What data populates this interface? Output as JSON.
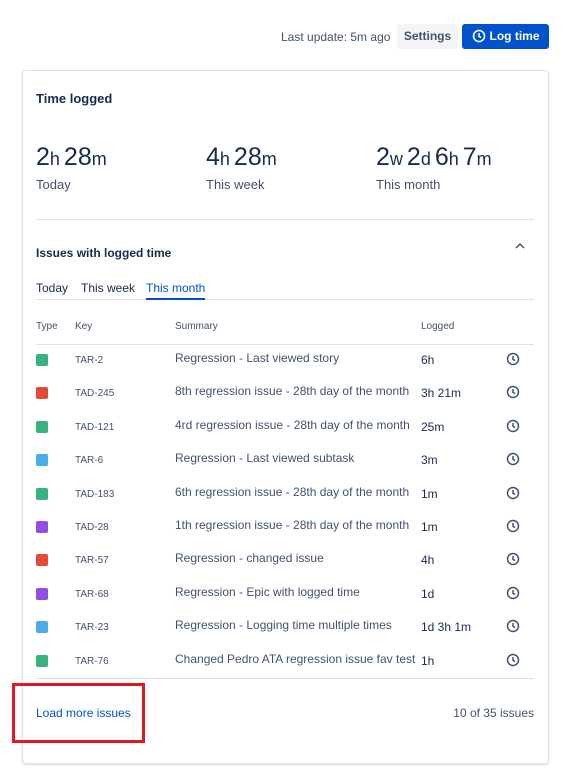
{
  "header": {
    "last_update": "Last update: 5m ago",
    "settings": "Settings",
    "log_time": "Log time"
  },
  "card": {
    "title": "Time logged",
    "stats": [
      {
        "parts": [
          {
            "n": "2",
            "u": "h"
          },
          {
            "n": "28",
            "u": "m"
          }
        ],
        "label": "Today"
      },
      {
        "parts": [
          {
            "n": "4",
            "u": "h"
          },
          {
            "n": "28",
            "u": "m"
          }
        ],
        "label": "This week"
      },
      {
        "parts": [
          {
            "n": "2",
            "u": "w"
          },
          {
            "n": "2",
            "u": "d"
          },
          {
            "n": "6",
            "u": "h"
          },
          {
            "n": "7",
            "u": "m"
          }
        ],
        "label": "This month"
      }
    ],
    "issues_title": "Issues with logged time",
    "tabs": [
      "Today",
      "This week",
      "This month"
    ],
    "table": {
      "columns": [
        "Type",
        "Key",
        "Summary",
        "Logged"
      ],
      "rows": [
        [
          "TAR-2",
          "Regression - Last viewed story",
          "6h"
        ],
        [
          "TAD-245",
          "8th regression issue - 28th day of the month",
          "3h 21m"
        ],
        [
          "TAD-121",
          "4rd regression issue - 28th day of the month",
          "25m"
        ],
        [
          "TAR-6",
          "Regression - Last viewed subtask",
          "3m"
        ],
        [
          "TAD-183",
          "6th regression issue - 28th day of the month",
          "1m"
        ],
        [
          "TAD-28",
          "1th regression issue - 28th day of the month",
          "1m"
        ],
        [
          "TAR-57",
          "Regression - changed issue",
          "4h"
        ],
        [
          "TAR-68",
          "Regression - Epic with logged time",
          "1d"
        ],
        [
          "TAR-23",
          "Regression - Logging time multiple times",
          "1d 3h 1m"
        ],
        [
          "TAR-76",
          "Changed Pedro ATA regression issue fav test",
          "1h"
        ]
      ]
    },
    "load_more": "Load more issues",
    "count": "10 of 35 issues"
  }
}
